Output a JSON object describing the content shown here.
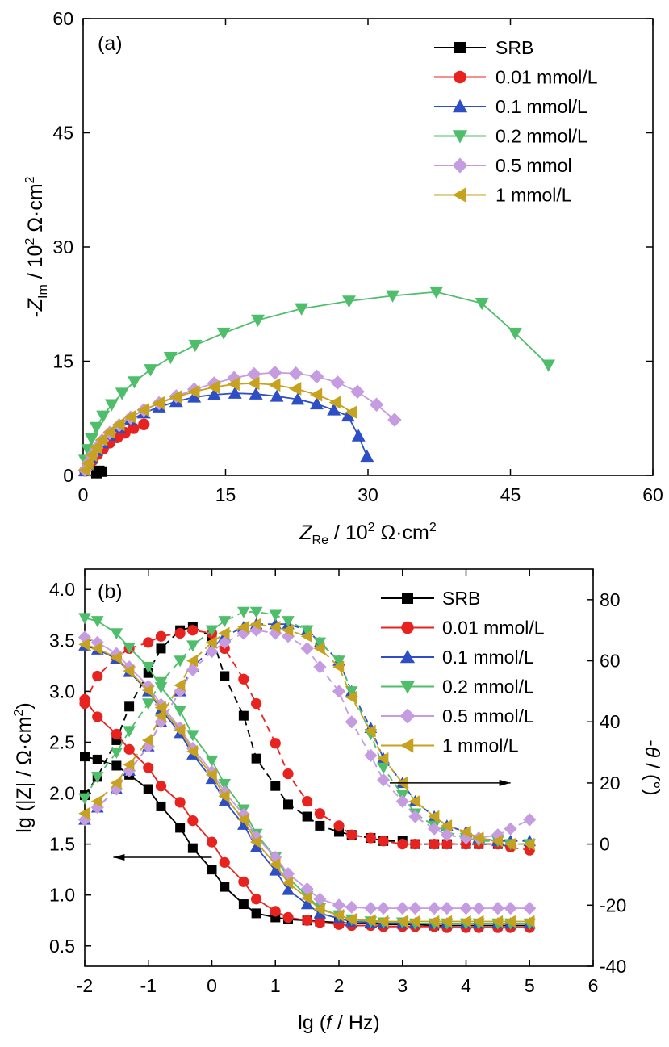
{
  "panel_a": {
    "label": "(a)",
    "xlabel_main": "Z",
    "xlabel_sub": "Re",
    "xlabel_unit": " / 10",
    "xlabel_exp": "2",
    "xlabel_unit2": " Ω·cm",
    "xlabel_exp2": "2",
    "ylabel_main": "-Z",
    "ylabel_sub": "Im",
    "ylabel_unit": " / 10",
    "ylabel_exp": "2",
    "ylabel_unit2": " Ω·cm",
    "ylabel_exp2": "2"
  },
  "panel_b": {
    "label": "(b)",
    "xlabel_pre": "lg (",
    "xlabel_f": "f",
    "xlabel_post": " / Hz)",
    "ylabel_left": "lg (|Z| / Ω·cm",
    "ylabel_left_exp": "2",
    "ylabel_left_post": ")",
    "ylabel_right_pre": "-",
    "ylabel_right_theta": "θ",
    "ylabel_right_post": " / (°)"
  },
  "chart_data": [
    {
      "type": "line",
      "panel": "a",
      "xlim": [
        0,
        60
      ],
      "ylim": [
        0,
        60
      ],
      "xticks": [
        0,
        15,
        30,
        45,
        60
      ],
      "yticks": [
        0,
        15,
        30,
        45,
        60
      ],
      "legend_position": "top-right",
      "series": [
        {
          "name": "SRB",
          "color": "#000000",
          "marker": "square",
          "x": [
            1.4,
            1.7,
            2.0
          ],
          "y": [
            0.3,
            0.6,
            0.5
          ]
        },
        {
          "name": "0.01 mmol/L",
          "color": "#e8231f",
          "marker": "circle",
          "x": [
            0.2,
            0.6,
            1.0,
            1.5,
            2.1,
            2.8,
            3.6,
            4.4,
            5.3,
            6.4
          ],
          "y": [
            0.6,
            1.3,
            2.0,
            2.8,
            3.5,
            4.3,
            5.0,
            5.6,
            6.2,
            6.7
          ]
        },
        {
          "name": "0.1 mmol/L",
          "color": "#2d4ec4",
          "marker": "triangle-up",
          "x": [
            0.2,
            0.5,
            0.9,
            1.4,
            2.0,
            2.8,
            3.8,
            5.0,
            6.4,
            8.0,
            9.8,
            11.7,
            13.8,
            16.0,
            18.2,
            20.4,
            22.6,
            24.6,
            26.4,
            27.9,
            29.0,
            29.9
          ],
          "y": [
            0.6,
            1.4,
            2.3,
            3.3,
            4.3,
            5.3,
            6.3,
            7.3,
            8.2,
            9.0,
            9.7,
            10.3,
            10.6,
            10.8,
            10.7,
            10.4,
            10.0,
            9.4,
            8.6,
            7.8,
            5.2,
            2.5
          ]
        },
        {
          "name": "0.2 mmol/L",
          "color": "#4fbe6a",
          "marker": "triangle-down",
          "x": [
            0.2,
            0.5,
            0.9,
            1.4,
            2.1,
            3.0,
            4.1,
            5.4,
            7.1,
            9.2,
            11.8,
            14.8,
            18.4,
            23.0,
            28.0,
            32.6,
            37.2,
            42.0,
            45.5,
            49.0
          ],
          "y": [
            2.0,
            3.4,
            4.8,
            6.3,
            7.8,
            9.3,
            10.8,
            12.3,
            13.9,
            15.5,
            17.1,
            18.7,
            20.4,
            21.9,
            22.9,
            23.6,
            24.1,
            22.6,
            18.7,
            14.5
          ]
        },
        {
          "name": "0.5 mmol",
          "color": "#c69ce0",
          "marker": "diamond",
          "x": [
            0.2,
            0.5,
            0.9,
            1.4,
            2.0,
            2.8,
            3.8,
            5.0,
            6.4,
            8.0,
            9.8,
            11.7,
            13.8,
            15.9,
            18.0,
            20.2,
            22.4,
            24.6,
            26.8,
            28.9,
            30.9,
            32.8
          ],
          "y": [
            0.7,
            1.6,
            2.6,
            3.6,
            4.6,
            5.6,
            6.6,
            7.6,
            8.6,
            9.5,
            10.4,
            11.3,
            12.1,
            12.8,
            13.3,
            13.5,
            13.4,
            13.0,
            12.2,
            11.0,
            9.3,
            7.3
          ]
        },
        {
          "name": "1 mmol/L",
          "color": "#c6a21e",
          "marker": "triangle-left",
          "x": [
            0.2,
            0.5,
            0.9,
            1.4,
            2.0,
            2.8,
            3.8,
            5.0,
            6.4,
            8.0,
            9.8,
            11.7,
            13.8,
            15.9,
            18.0,
            20.2,
            22.4,
            24.6,
            26.6,
            28.3
          ],
          "y": [
            0.7,
            1.6,
            2.7,
            3.7,
            4.7,
            5.7,
            6.7,
            7.7,
            8.6,
            9.5,
            10.3,
            11.0,
            11.6,
            12.0,
            12.1,
            11.9,
            11.4,
            10.6,
            9.6,
            8.3
          ]
        }
      ]
    },
    {
      "type": "line",
      "panel": "b",
      "xlim": [
        -2,
        6
      ],
      "ylim_left": [
        0.3,
        4.2
      ],
      "ylim_right": [
        -40,
        90
      ],
      "xticks": [
        -2,
        -1,
        0,
        1,
        2,
        3,
        4,
        5,
        6
      ],
      "yticks_left": [
        0.5,
        1.0,
        1.5,
        2.0,
        2.5,
        3.0,
        3.5,
        4.0
      ],
      "yticks_left_labels": [
        "0.5",
        "1.0",
        "1.5",
        "2.0",
        "2.5",
        "3.0",
        "3.5",
        "4.0"
      ],
      "yticks_right": [
        -40,
        -20,
        0,
        20,
        40,
        60,
        80
      ],
      "legend_position": "top-right",
      "arrows": [
        {
          "direction": "left",
          "axis": "left",
          "x_from": 0,
          "x_to": -1.55,
          "y": 1.37
        },
        {
          "direction": "right",
          "axis": "right",
          "x_from": 2.8,
          "x_to": 4.7,
          "y": 20
        }
      ],
      "x": [
        -2.0,
        -1.8,
        -1.5,
        -1.3,
        -1.0,
        -0.8,
        -0.5,
        -0.3,
        0.0,
        0.2,
        0.5,
        0.7,
        1.0,
        1.2,
        1.5,
        1.7,
        2.0,
        2.2,
        2.5,
        2.7,
        3.0,
        3.2,
        3.5,
        3.7,
        4.0,
        4.2,
        4.5,
        4.7,
        5.0
      ],
      "series": [
        {
          "name": "SRB",
          "color": "#000000",
          "marker": "square",
          "lgz": [
            2.36,
            2.33,
            2.27,
            2.18,
            2.04,
            1.87,
            1.66,
            1.46,
            1.25,
            1.08,
            0.91,
            0.82,
            0.78,
            0.76,
            0.75,
            0.74,
            0.73,
            0.72,
            0.72,
            0.71,
            0.71,
            0.71,
            0.7,
            0.7,
            0.7,
            0.7,
            0.7,
            0.7,
            0.7
          ],
          "theta": [
            16,
            22,
            34,
            45,
            56,
            64,
            70,
            71,
            68,
            55,
            42,
            28,
            19,
            13,
            9,
            6,
            4,
            3,
            2,
            1,
            1,
            0,
            0,
            0,
            0,
            0,
            0,
            0,
            0
          ]
        },
        {
          "name": "0.01 mmol/L",
          "color": "#e8231f",
          "marker": "circle",
          "lgz": [
            2.92,
            2.75,
            2.58,
            2.43,
            2.25,
            2.07,
            1.91,
            1.73,
            1.52,
            1.32,
            1.13,
            0.96,
            0.84,
            0.78,
            0.75,
            0.73,
            0.71,
            0.7,
            0.7,
            0.69,
            0.69,
            0.69,
            0.69,
            0.68,
            0.68,
            0.68,
            0.68,
            0.68,
            0.68
          ],
          "theta": [
            46,
            55,
            61,
            64,
            66,
            68,
            69,
            70,
            69,
            64,
            54,
            46,
            33,
            23,
            14,
            10,
            6,
            3,
            2,
            1,
            0,
            0,
            0,
            0,
            0,
            0,
            0,
            -1,
            -2
          ]
        },
        {
          "name": "0.1 mmol/L",
          "color": "#2d4ec4",
          "marker": "triangle-up",
          "lgz": [
            3.45,
            3.41,
            3.32,
            3.19,
            3.0,
            2.82,
            2.59,
            2.38,
            2.14,
            1.92,
            1.69,
            1.47,
            1.24,
            1.05,
            0.91,
            0.82,
            0.77,
            0.74,
            0.73,
            0.72,
            0.72,
            0.72,
            0.72,
            0.72,
            0.72,
            0.72,
            0.72,
            0.72,
            0.72
          ],
          "theta": [
            8,
            12,
            18,
            24,
            32,
            40,
            50,
            58,
            64,
            68,
            71,
            72,
            72,
            72,
            70,
            66,
            60,
            50,
            38,
            28,
            20,
            14,
            9,
            6,
            4,
            2,
            1,
            1,
            1
          ]
        },
        {
          "name": "0.2 mmol/L",
          "color": "#4fbe6a",
          "marker": "triangle-down",
          "lgz": [
            3.72,
            3.69,
            3.57,
            3.43,
            3.24,
            3.04,
            2.81,
            2.57,
            2.32,
            2.09,
            1.84,
            1.6,
            1.37,
            1.17,
            0.99,
            0.87,
            0.8,
            0.76,
            0.74,
            0.73,
            0.73,
            0.72,
            0.72,
            0.72,
            0.72,
            0.72,
            0.72,
            0.72,
            0.72
          ],
          "theta": [
            15,
            22,
            30,
            37,
            46,
            53,
            60,
            65,
            70,
            73,
            76,
            76,
            75,
            73,
            70,
            66,
            60,
            50,
            36,
            25,
            16,
            10,
            6,
            4,
            2,
            1,
            1,
            0,
            0
          ]
        },
        {
          "name": "0.5 mmol/L",
          "color": "#c69ce0",
          "marker": "diamond",
          "lgz": [
            3.53,
            3.48,
            3.37,
            3.24,
            3.05,
            2.87,
            2.64,
            2.44,
            2.21,
            2.01,
            1.79,
            1.57,
            1.37,
            1.21,
            1.06,
            0.96,
            0.9,
            0.88,
            0.87,
            0.87,
            0.87,
            0.87,
            0.87,
            0.87,
            0.87,
            0.87,
            0.87,
            0.87,
            0.87
          ],
          "theta": [
            8,
            12,
            18,
            24,
            32,
            40,
            50,
            57,
            63,
            66,
            69,
            70,
            69,
            68,
            64,
            58,
            50,
            40,
            29,
            21,
            14,
            9,
            5,
            3,
            2,
            2,
            3,
            5,
            8
          ]
        },
        {
          "name": "1 mmol/L",
          "color": "#c6a21e",
          "marker": "triangle-left",
          "lgz": [
            3.46,
            3.42,
            3.33,
            3.2,
            3.01,
            2.84,
            2.62,
            2.41,
            2.18,
            1.97,
            1.74,
            1.52,
            1.3,
            1.12,
            0.97,
            0.86,
            0.8,
            0.76,
            0.75,
            0.74,
            0.74,
            0.74,
            0.74,
            0.74,
            0.74,
            0.74,
            0.74,
            0.74,
            0.74
          ],
          "theta": [
            10,
            14,
            20,
            26,
            34,
            42,
            52,
            60,
            66,
            69,
            71,
            72,
            71,
            70,
            68,
            64,
            58,
            48,
            37,
            28,
            20,
            14,
            9,
            6,
            4,
            2,
            1,
            0,
            0
          ]
        }
      ]
    }
  ]
}
